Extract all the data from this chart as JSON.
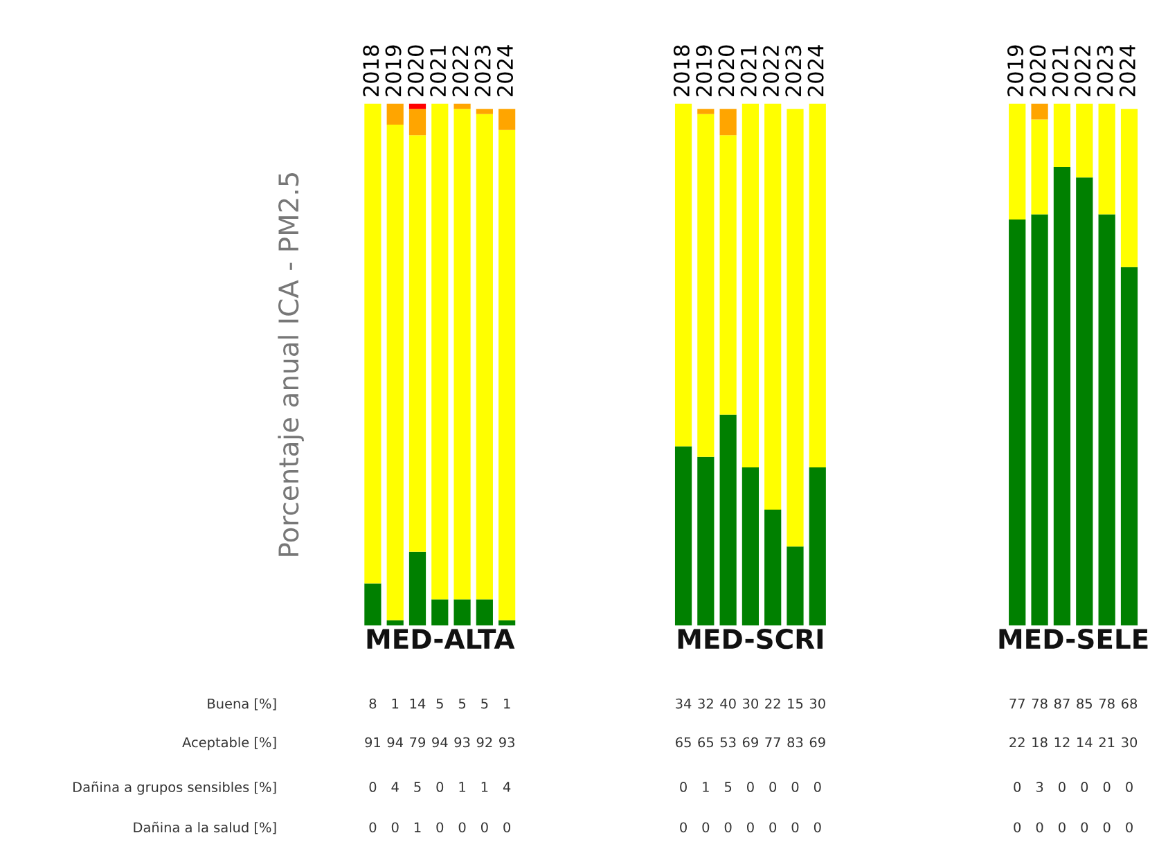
{
  "chart_data": [
    {
      "type": "bar",
      "title": "MED-ALTA",
      "ylabel": "Porcentaje anual ICA - PM2.5",
      "stacked": true,
      "data_labels": true,
      "grid": false,
      "legend": false,
      "annotations": [
        "Buena [%]",
        "Aceptable [%]",
        "Dañina a grupos sensibles [%]",
        "Dañina a la salud [%]"
      ],
      "categories": [
        "2018",
        "2019",
        "2020",
        "2021",
        "2022",
        "2023",
        "2024"
      ],
      "series": [
        {
          "color": "#008000",
          "values": [
            8,
            1,
            14,
            5,
            5,
            5,
            1
          ]
        },
        {
          "color": "#ffff00",
          "values": [
            91,
            94,
            79,
            94,
            93,
            92,
            93
          ]
        },
        {
          "color": "#ffa500",
          "values": [
            0,
            4,
            5,
            0,
            1,
            1,
            4
          ]
        },
        {
          "color": "#ff0000",
          "values": [
            0,
            0,
            1,
            0,
            0,
            0,
            0
          ]
        }
      ]
    },
    {
      "type": "bar",
      "title": "MED-SCRI",
      "stacked": true,
      "data_labels": true,
      "grid": false,
      "legend": false,
      "categories": [
        "2018",
        "2019",
        "2020",
        "2021",
        "2022",
        "2023",
        "2024"
      ],
      "series": [
        {
          "color": "#008000",
          "values": [
            34,
            32,
            40,
            30,
            22,
            15,
            30
          ]
        },
        {
          "color": "#ffff00",
          "values": [
            65,
            65,
            53,
            69,
            77,
            83,
            69
          ]
        },
        {
          "color": "#ffa500",
          "values": [
            0,
            1,
            5,
            0,
            0,
            0,
            0
          ]
        },
        {
          "color": "#ff0000",
          "values": [
            0,
            0,
            0,
            0,
            0,
            0,
            0
          ]
        }
      ]
    },
    {
      "type": "bar",
      "title": "MED-SELE",
      "stacked": true,
      "data_labels": true,
      "grid": false,
      "legend": false,
      "categories": [
        "2019",
        "2020",
        "2021",
        "2022",
        "2023",
        "2024"
      ],
      "series": [
        {
          "color": "#008000",
          "values": [
            77,
            78,
            87,
            85,
            78,
            68
          ]
        },
        {
          "color": "#ffff00",
          "values": [
            22,
            18,
            12,
            14,
            21,
            30
          ]
        },
        {
          "color": "#ffa500",
          "values": [
            0,
            3,
            0,
            0,
            0,
            0
          ]
        },
        {
          "color": "#ff0000",
          "values": [
            0,
            0,
            0,
            0,
            0,
            0
          ]
        }
      ]
    }
  ]
}
